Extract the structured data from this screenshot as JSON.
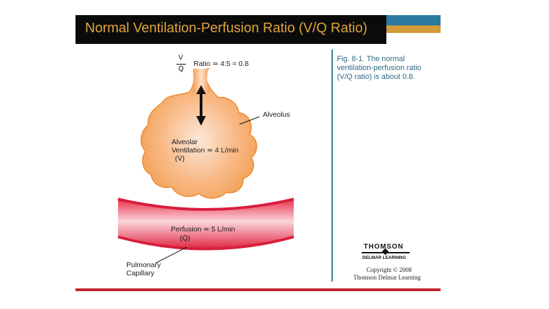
{
  "title": "Normal Ventilation-Perfusion Ratio (V/Q Ratio)",
  "caption": "Fig. 8-1.  The normal ventilation-perfusion ratio (V/Q ratio) is about 0.8.",
  "ratio": {
    "numerator": "V̇",
    "denominator": "Q̇",
    "text": "Ratio ≃ 4:5 = 0.8"
  },
  "alveolus_label": "Alveolus",
  "ventilation": {
    "line1": "Alveolar",
    "line2": "Ventilation ≃ 4 L/min",
    "line3": "(V̇)"
  },
  "perfusion": {
    "line1": "Perfusion ≃ 5 L/min",
    "line2": "(Q̇)"
  },
  "capillary": {
    "line1": "Pulmonary",
    "line2": "Capillary"
  },
  "publisher": {
    "logo": "THOMSON",
    "sub": "DELMAR LEARNING",
    "copyright": "Copyright © 2008",
    "copyright_line2": "Thomson Delmar Learning"
  },
  "colors": {
    "title": "#e1a43b",
    "alveolus_center": "#fde8d8",
    "alveolus_edge": "#f39a4a",
    "vessel": "#e8324b",
    "caption": "#2e6a85",
    "rule": "#c2232b"
  }
}
